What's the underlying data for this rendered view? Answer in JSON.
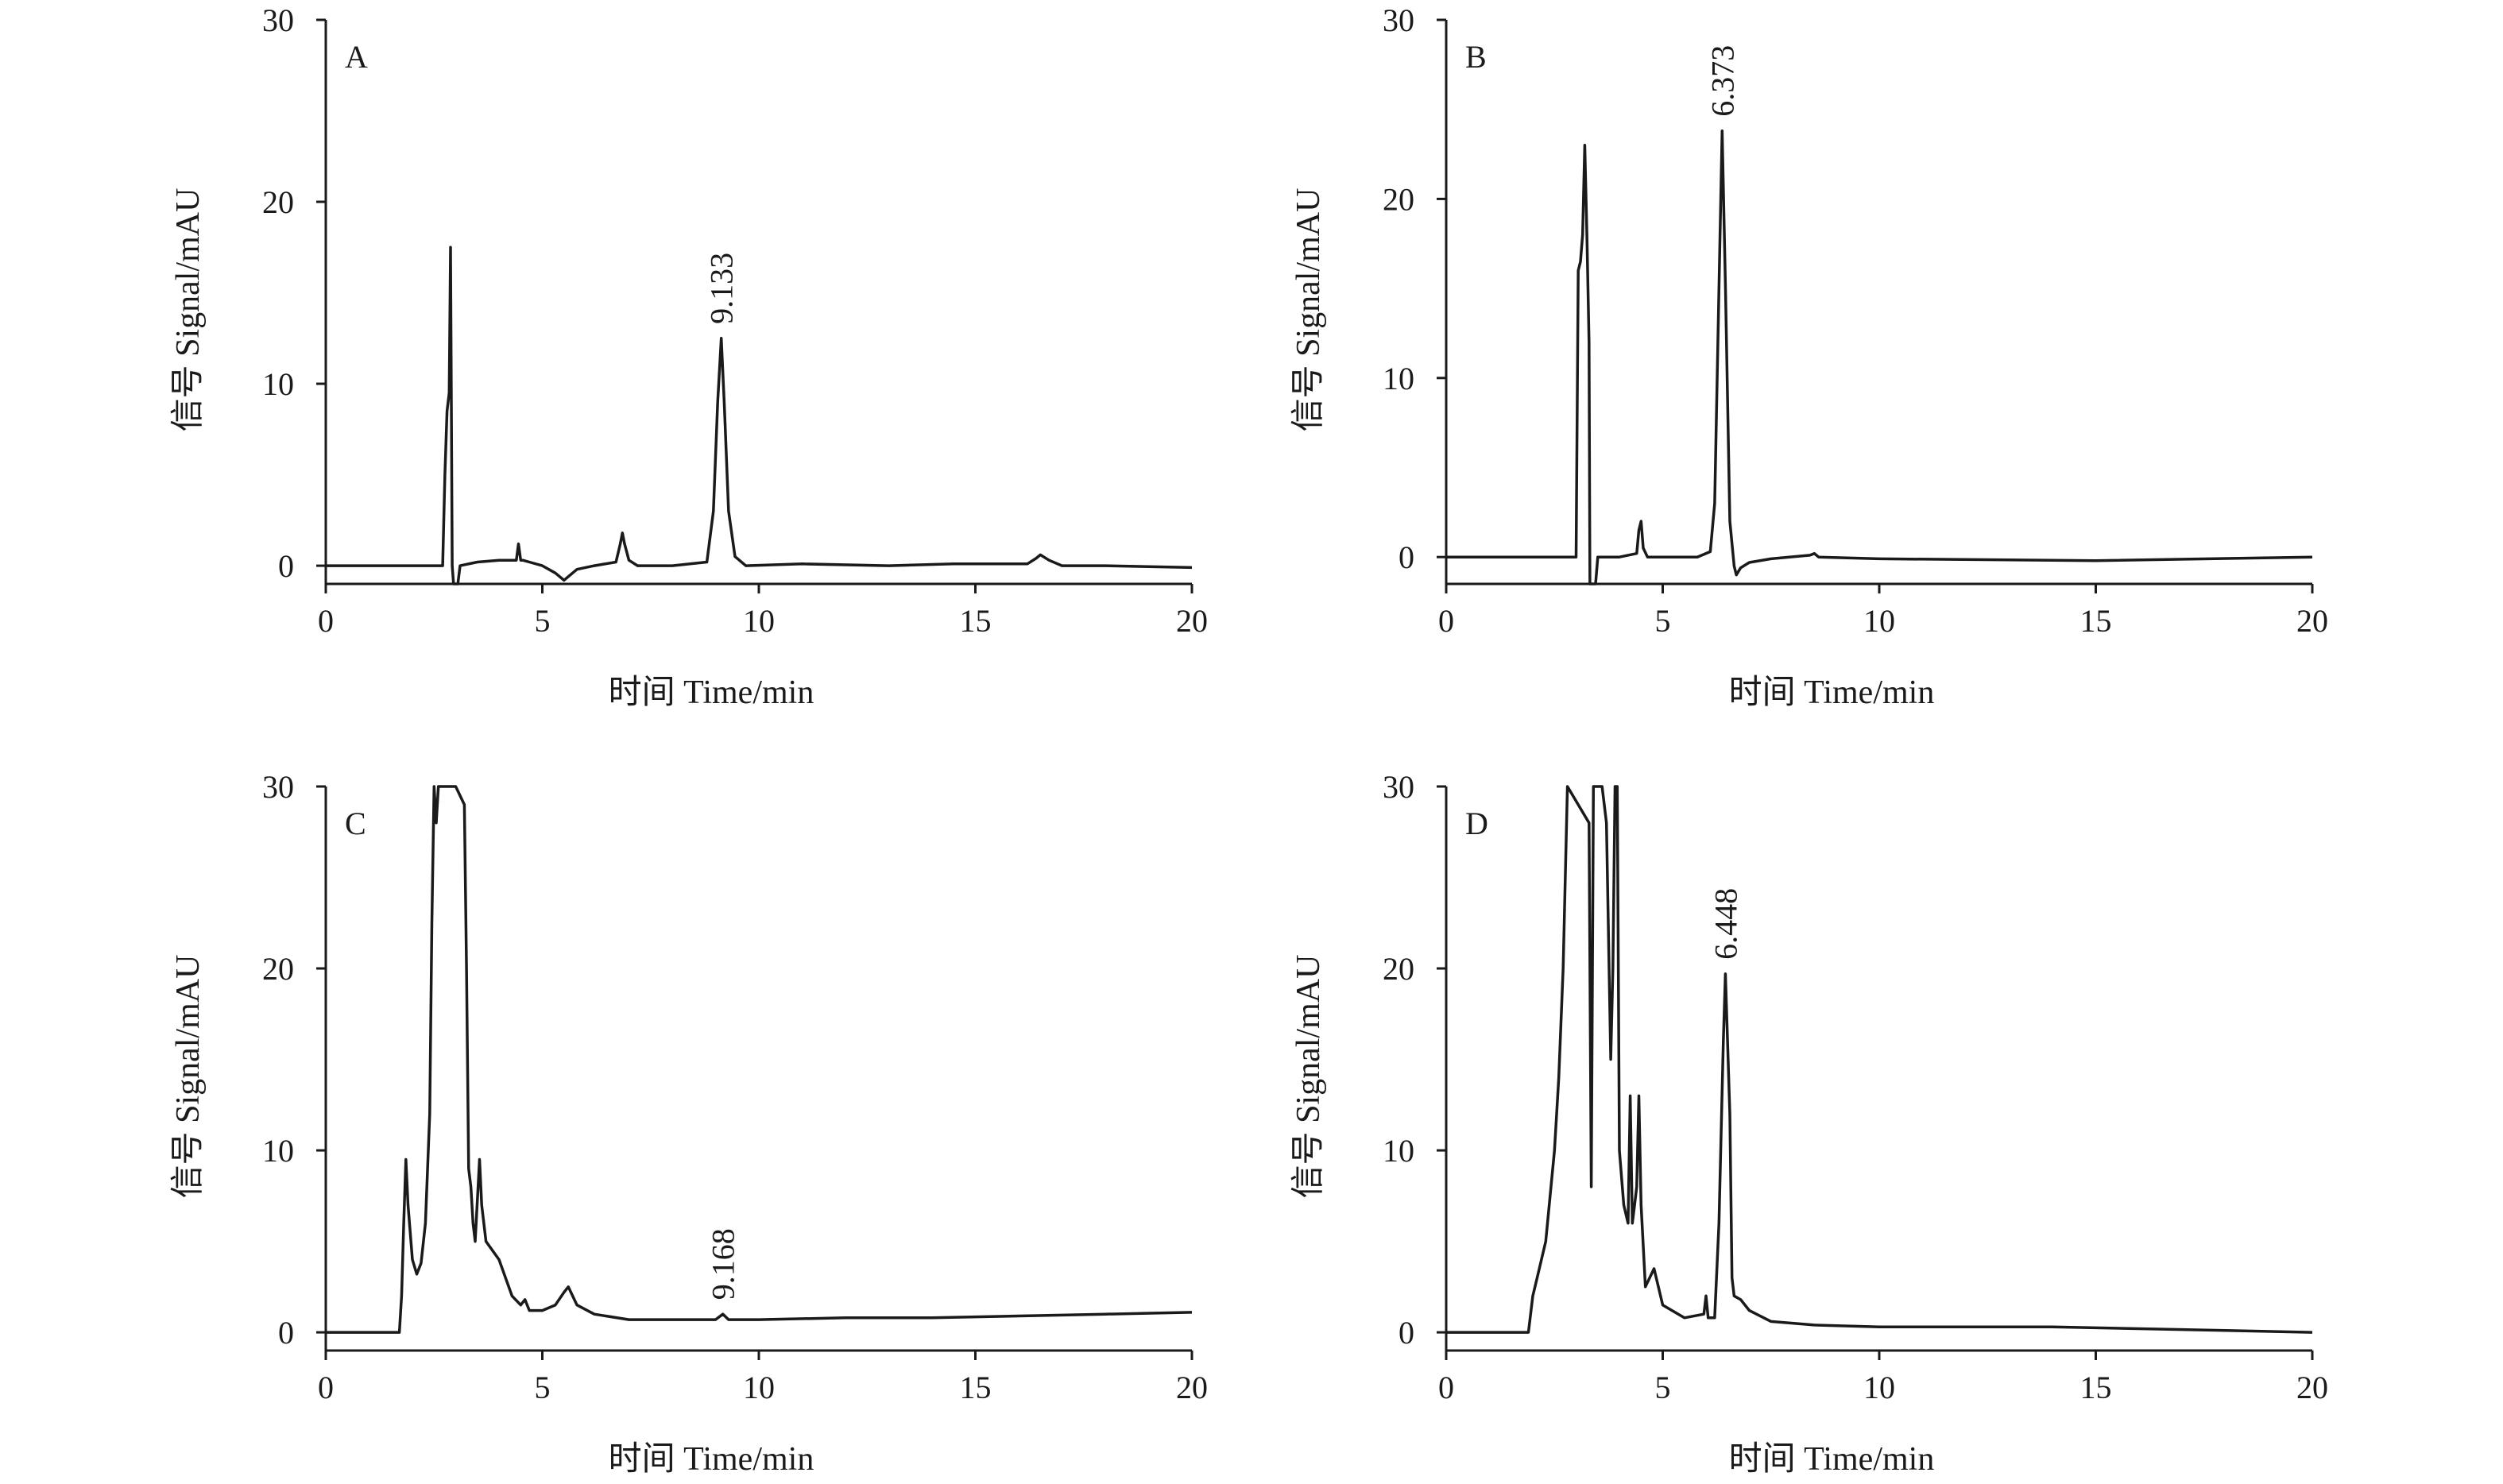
{
  "chart_data": [
    {
      "type": "line",
      "panel": "A",
      "xlabel": "时间 Time/min",
      "ylabel": "信号 Signal/mAU",
      "xlim": [
        0,
        20
      ],
      "ylim": [
        -1,
        30
      ],
      "x_ticks": [
        "0",
        "5",
        "10",
        "15",
        "20"
      ],
      "y_ticks": [
        "0",
        "10",
        "20",
        "30"
      ],
      "grid": false,
      "peak_labels": [
        {
          "x": 9.133,
          "y": 12.5,
          "label": "9.133"
        }
      ],
      "series": [
        {
          "x": [
            0,
            2.7,
            2.75,
            2.8,
            2.85,
            2.88,
            2.9,
            2.92,
            2.95,
            3.0,
            3.05,
            3.1,
            3.5,
            4.0,
            4.4,
            4.45,
            4.5,
            4.55,
            4.7,
            5.0,
            5.3,
            5.5,
            5.6,
            5.8,
            6.2,
            6.7,
            6.8,
            6.85,
            6.9,
            7.0,
            7.2,
            8.0,
            8.8,
            8.95,
            9.05,
            9.133,
            9.2,
            9.3,
            9.45,
            9.7,
            11,
            13,
            14.5,
            16.2,
            16.4,
            16.5,
            16.7,
            17,
            18,
            20
          ],
          "y": [
            0,
            0,
            5,
            8.5,
            9.5,
            17.5,
            9,
            0,
            -1,
            -1,
            -1,
            0,
            0.2,
            0.3,
            0.3,
            1.2,
            0.3,
            0.3,
            0.2,
            0,
            -0.4,
            -0.8,
            -0.6,
            -0.2,
            0,
            0.2,
            1.2,
            1.8,
            1.2,
            0.3,
            0,
            0,
            0.2,
            3,
            9,
            12.5,
            9,
            3,
            0.5,
            0,
            0.1,
            0,
            0.1,
            0.1,
            0.4,
            0.6,
            0.3,
            0,
            0,
            -0.1
          ]
        }
      ]
    },
    {
      "type": "line",
      "panel": "B",
      "xlabel": "时间 Time/min",
      "ylabel": "信号 Signal/mAU",
      "xlim": [
        0,
        20
      ],
      "ylim": [
        -1.5,
        30
      ],
      "x_ticks": [
        "0",
        "5",
        "10",
        "15",
        "20"
      ],
      "y_ticks": [
        "0",
        "10",
        "20",
        "30"
      ],
      "grid": false,
      "peak_labels": [
        {
          "x": 6.373,
          "y": 23.8,
          "label": "6.373"
        }
      ],
      "series": [
        {
          "x": [
            0,
            3.0,
            3.05,
            3.1,
            3.15,
            3.2,
            3.25,
            3.3,
            3.32,
            3.35,
            3.4,
            3.45,
            3.5,
            3.6,
            4.0,
            4.4,
            4.45,
            4.5,
            4.55,
            4.65,
            5.0,
            5.8,
            6.1,
            6.2,
            6.3,
            6.373,
            6.45,
            6.55,
            6.65,
            6.7,
            6.8,
            7.0,
            7.5,
            8.4,
            8.5,
            8.6,
            10,
            15,
            20
          ],
          "y": [
            0,
            0,
            16,
            16.5,
            18,
            23,
            18,
            12,
            -1.5,
            -1.5,
            -1.5,
            -1.5,
            0,
            0,
            0,
            0.2,
            1.5,
            2,
            0.5,
            0,
            0,
            0,
            0.3,
            3,
            15,
            23.8,
            15,
            2,
            -0.5,
            -1,
            -0.6,
            -0.3,
            -0.1,
            0.1,
            0.2,
            0,
            -0.1,
            -0.2,
            0
          ]
        }
      ]
    },
    {
      "type": "line",
      "panel": "C",
      "xlabel": "时间 Time/min",
      "ylabel": "信号 Signal/mAU",
      "xlim": [
        0,
        20
      ],
      "ylim": [
        -1,
        30
      ],
      "x_ticks": [
        "0",
        "5",
        "10",
        "15",
        "20"
      ],
      "y_ticks": [
        "0",
        "10",
        "20",
        "30"
      ],
      "grid": false,
      "peak_labels": [
        {
          "x": 9.168,
          "y": 1.0,
          "label": "9.168"
        }
      ],
      "series": [
        {
          "x": [
            0,
            1.7,
            1.75,
            1.8,
            1.85,
            1.9,
            2.0,
            2.1,
            2.2,
            2.3,
            2.4,
            2.45,
            2.5,
            2.55,
            2.6,
            2.65,
            2.8,
            3.0,
            3.2,
            3.25,
            3.3,
            3.35,
            3.4,
            3.45,
            3.55,
            3.6,
            3.7,
            4.0,
            4.3,
            4.5,
            4.6,
            4.7,
            5.0,
            5.3,
            5.5,
            5.6,
            5.8,
            6.2,
            7,
            8,
            9.0,
            9.168,
            9.3,
            10,
            12,
            14,
            16,
            18,
            20
          ],
          "y": [
            0,
            0,
            2,
            6,
            9.5,
            7,
            4,
            3.2,
            3.8,
            6,
            12,
            22.5,
            30,
            28,
            30,
            30,
            30,
            30,
            29,
            20,
            9,
            8,
            6,
            5,
            9.5,
            7,
            5,
            4,
            2,
            1.5,
            1.8,
            1.2,
            1.2,
            1.5,
            2.2,
            2.5,
            1.5,
            1.0,
            0.7,
            0.7,
            0.7,
            1.0,
            0.7,
            0.7,
            0.8,
            0.8,
            0.9,
            1.0,
            1.1
          ]
        }
      ]
    },
    {
      "type": "line",
      "panel": "D",
      "xlabel": "时间 Time/min",
      "ylabel": "信号 Signal/mAU",
      "xlim": [
        0,
        20
      ],
      "ylim": [
        -1,
        30
      ],
      "x_ticks": [
        "0",
        "5",
        "10",
        "15",
        "20"
      ],
      "y_ticks": [
        "0",
        "10",
        "20",
        "30"
      ],
      "grid": false,
      "peak_labels": [
        {
          "x": 6.448,
          "y": 19.7,
          "label": "6.448"
        }
      ],
      "series": [
        {
          "x": [
            0,
            1.9,
            2.0,
            2.1,
            2.3,
            2.5,
            2.6,
            2.7,
            2.8,
            3.3,
            3.35,
            3.4,
            3.45,
            3.5,
            3.55,
            3.6,
            3.7,
            3.8,
            3.85,
            3.9,
            3.95,
            4.0,
            4.1,
            4.2,
            4.25,
            4.3,
            4.35,
            4.4,
            4.45,
            4.5,
            4.6,
            4.8,
            5.0,
            5.5,
            5.95,
            6.0,
            6.05,
            6.2,
            6.3,
            6.4,
            6.448,
            6.55,
            6.6,
            6.65,
            6.8,
            7.0,
            7.5,
            8.5,
            10,
            12,
            14,
            16,
            18,
            20
          ],
          "y": [
            0,
            0,
            2,
            3,
            5,
            10,
            14,
            20,
            30,
            28,
            8,
            30,
            30,
            30,
            30,
            30,
            28,
            15,
            20,
            30,
            30,
            10,
            7,
            6,
            13,
            6,
            7,
            8,
            13,
            7,
            2.5,
            3.5,
            1.5,
            0.8,
            1,
            2,
            0.8,
            0.8,
            6,
            16,
            19.7,
            12,
            3,
            2,
            1.8,
            1.2,
            0.6,
            0.4,
            0.3,
            0.3,
            0.3,
            0.2,
            0.1,
            0
          ]
        }
      ]
    }
  ]
}
